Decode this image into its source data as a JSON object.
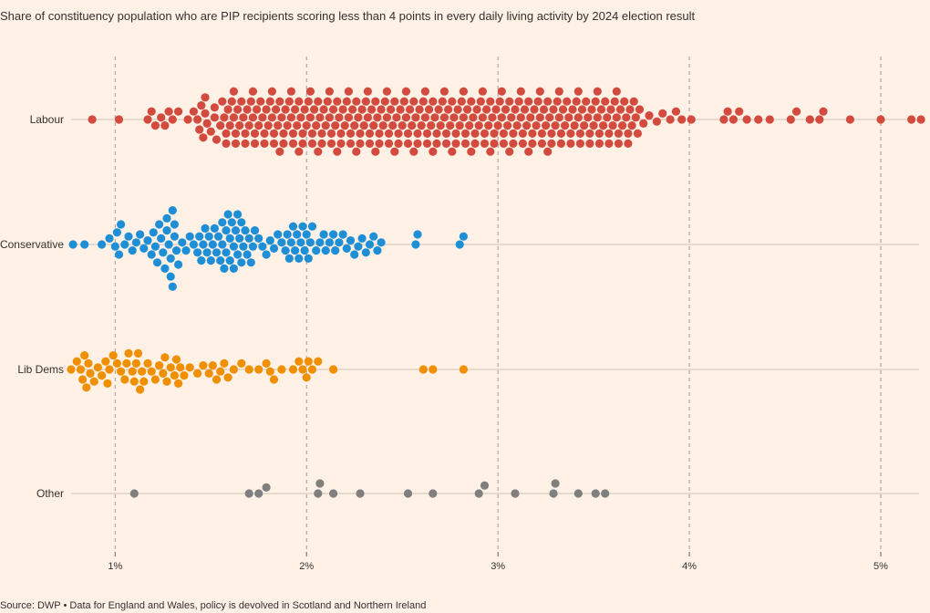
{
  "chart_data": {
    "type": "scatter",
    "subtype": "beeswarm",
    "title": "Share of constituency population who are PIP recipients scoring less than 4 points in every daily living activity by 2024 election result",
    "source": "Source: DWP • Data for England and Wales, policy is devolved in Scotland and Northern Ireland",
    "xlim": [
      0.77,
      5.2
    ],
    "x_ticks": [
      1,
      2,
      3,
      4,
      5
    ],
    "x_tick_labels": [
      "1%",
      "2%",
      "3%",
      "4%",
      "5%"
    ],
    "grid": "vertical dashed at ticks",
    "series": [
      {
        "name": "Labour",
        "color": "#D24B3E",
        "values": [
          0.88,
          1.02,
          1.17,
          1.19,
          1.21,
          1.24,
          1.26,
          1.28,
          1.3,
          1.33,
          1.38,
          1.41,
          1.43,
          1.44,
          1.45,
          1.46,
          1.47,
          1.48,
          1.5,
          1.52,
          1.53,
          1.55,
          1.56,
          1.57,
          1.58,
          1.59,
          1.6,
          1.61,
          1.62,
          1.63,
          1.64,
          1.65,
          1.66,
          1.67,
          1.68,
          1.69,
          1.7,
          1.71,
          1.72,
          1.73,
          1.74,
          1.75,
          1.76,
          1.77,
          1.78,
          1.79,
          1.8,
          1.81,
          1.82,
          1.83,
          1.84,
          1.85,
          1.86,
          1.87,
          1.88,
          1.89,
          1.9,
          1.91,
          1.92,
          1.93,
          1.94,
          1.95,
          1.96,
          1.97,
          1.98,
          1.99,
          2.0,
          2.01,
          2.02,
          2.03,
          2.04,
          2.05,
          2.06,
          2.07,
          2.08,
          2.09,
          2.1,
          2.11,
          2.12,
          2.13,
          2.14,
          2.15,
          2.16,
          2.17,
          2.18,
          2.19,
          2.2,
          2.21,
          2.22,
          2.23,
          2.24,
          2.25,
          2.26,
          2.27,
          2.28,
          2.29,
          2.3,
          2.31,
          2.32,
          2.33,
          2.34,
          2.35,
          2.36,
          2.37,
          2.38,
          2.39,
          2.4,
          2.41,
          2.42,
          2.43,
          2.44,
          2.45,
          2.46,
          2.47,
          2.48,
          2.49,
          2.5,
          2.51,
          2.52,
          2.53,
          2.54,
          2.55,
          2.56,
          2.57,
          2.58,
          2.59,
          2.6,
          2.61,
          2.62,
          2.63,
          2.64,
          2.65,
          2.66,
          2.67,
          2.68,
          2.69,
          2.7,
          2.71,
          2.72,
          2.73,
          2.74,
          2.75,
          2.76,
          2.77,
          2.78,
          2.79,
          2.8,
          2.81,
          2.82,
          2.83,
          2.84,
          2.85,
          2.86,
          2.87,
          2.88,
          2.89,
          2.9,
          2.91,
          2.92,
          2.93,
          2.94,
          2.95,
          2.96,
          2.97,
          2.98,
          2.99,
          3.0,
          3.01,
          3.02,
          3.03,
          3.04,
          3.05,
          3.06,
          3.07,
          3.08,
          3.09,
          3.1,
          3.11,
          3.12,
          3.13,
          3.14,
          3.15,
          3.16,
          3.17,
          3.18,
          3.19,
          3.2,
          3.21,
          3.22,
          3.23,
          3.24,
          3.25,
          3.26,
          3.27,
          3.28,
          3.29,
          3.3,
          3.31,
          3.32,
          3.33,
          3.34,
          3.35,
          3.36,
          3.37,
          3.38,
          3.39,
          3.4,
          3.41,
          3.42,
          3.43,
          3.44,
          3.45,
          3.46,
          3.47,
          3.48,
          3.49,
          3.5,
          3.51,
          3.52,
          3.53,
          3.54,
          3.55,
          3.56,
          3.57,
          3.58,
          3.59,
          3.6,
          3.61,
          3.62,
          3.63,
          3.64,
          3.65,
          3.66,
          3.67,
          3.68,
          3.69,
          3.7,
          3.71,
          3.72,
          3.73,
          3.74,
          3.76,
          3.79,
          3.83,
          3.86,
          3.9,
          3.93,
          3.96,
          4.01,
          4.18,
          4.2,
          4.23,
          4.26,
          4.3,
          4.36,
          4.42,
          4.53,
          4.56,
          4.63,
          4.68,
          4.7,
          4.84,
          5.0,
          5.16,
          5.21,
          1.47,
          1.52,
          1.58,
          1.63,
          1.68,
          1.73,
          1.78,
          1.83,
          1.88,
          1.93,
          1.98,
          2.03,
          2.08,
          2.13,
          2.18,
          2.23,
          2.28,
          2.33,
          2.38,
          2.43,
          2.48,
          2.53,
          2.58,
          2.63,
          2.68,
          2.73,
          2.78,
          2.83,
          2.88,
          2.93,
          2.98,
          3.03,
          3.08,
          3.13,
          3.18,
          3.23,
          3.28,
          3.33,
          3.38,
          3.43,
          3.48,
          3.53,
          3.58,
          3.63,
          3.68,
          1.62,
          1.72,
          1.82,
          1.92,
          2.02,
          2.12,
          2.22,
          2.32,
          2.42,
          2.52,
          2.62,
          2.72,
          2.82,
          2.92,
          3.02,
          3.12,
          3.22,
          3.32,
          3.42,
          3.52,
          3.62,
          1.86,
          1.96,
          2.06,
          2.16,
          2.26,
          2.36,
          2.46,
          2.56,
          2.66,
          2.76,
          2.86,
          2.96,
          3.06,
          3.16,
          3.26
        ]
      },
      {
        "name": "Conservative",
        "color": "#1E8FD6",
        "values": [
          0.78,
          0.84,
          0.93,
          0.97,
          1.0,
          1.01,
          1.02,
          1.03,
          1.05,
          1.07,
          1.09,
          1.11,
          1.13,
          1.15,
          1.17,
          1.19,
          1.2,
          1.21,
          1.22,
          1.23,
          1.24,
          1.25,
          1.26,
          1.27,
          1.28,
          1.29,
          1.3,
          1.31,
          1.32,
          1.33,
          1.35,
          1.37,
          1.39,
          1.41,
          1.43,
          1.44,
          1.45,
          1.46,
          1.47,
          1.48,
          1.49,
          1.5,
          1.51,
          1.52,
          1.53,
          1.54,
          1.55,
          1.56,
          1.57,
          1.58,
          1.59,
          1.6,
          1.61,
          1.62,
          1.63,
          1.64,
          1.65,
          1.66,
          1.67,
          1.68,
          1.69,
          1.7,
          1.71,
          1.72,
          1.73,
          1.75,
          1.77,
          1.79,
          1.81,
          1.83,
          1.85,
          1.87,
          1.89,
          1.9,
          1.91,
          1.92,
          1.93,
          1.94,
          1.95,
          1.96,
          1.97,
          1.98,
          1.99,
          2.0,
          2.01,
          2.02,
          2.03,
          2.05,
          2.07,
          2.09,
          2.1,
          2.12,
          2.14,
          2.15,
          2.17,
          2.19,
          2.21,
          2.23,
          2.25,
          2.27,
          2.29,
          2.31,
          2.33,
          2.35,
          2.37,
          2.39,
          2.57,
          2.58,
          2.8,
          2.82,
          1.29,
          1.3,
          1.31,
          1.58,
          1.6,
          1.62,
          1.64,
          1.27,
          1.56,
          1.66
        ]
      },
      {
        "name": "Lib Dems",
        "color": "#F08F00",
        "values": [
          0.77,
          0.8,
          0.82,
          0.83,
          0.84,
          0.85,
          0.87,
          0.89,
          0.91,
          0.93,
          0.95,
          0.96,
          0.97,
          0.99,
          1.01,
          1.03,
          1.05,
          1.06,
          1.07,
          1.09,
          1.1,
          1.11,
          1.12,
          1.13,
          1.15,
          1.17,
          1.19,
          1.21,
          1.23,
          1.25,
          1.26,
          1.27,
          1.29,
          1.31,
          1.32,
          1.33,
          1.34,
          1.36,
          1.39,
          1.43,
          1.46,
          1.49,
          1.51,
          1.53,
          1.55,
          1.57,
          1.59,
          1.62,
          1.66,
          1.7,
          1.75,
          1.79,
          1.81,
          1.83,
          1.87,
          1.93,
          1.96,
          1.98,
          2.0,
          2.01,
          2.03,
          2.06,
          2.14,
          2.61,
          2.66,
          2.82,
          0.86,
          1.14
        ]
      },
      {
        "name": "Other",
        "color": "#7F7F7F",
        "values": [
          1.1,
          1.7,
          1.75,
          1.79,
          2.06,
          2.07,
          2.14,
          2.28,
          2.53,
          2.66,
          2.9,
          2.93,
          3.09,
          3.29,
          3.3,
          3.42,
          3.51,
          3.56
        ]
      }
    ]
  }
}
